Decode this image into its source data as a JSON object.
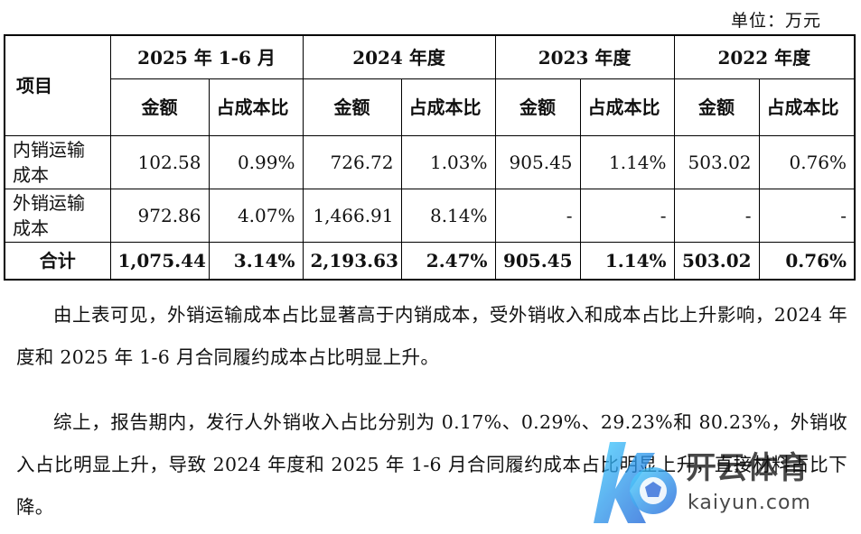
{
  "unit_label": "单位：万元",
  "table": {
    "project_header": "项目",
    "periods": [
      "2025 年 1-6 月",
      "2024 年度",
      "2023 年度",
      "2022 年度"
    ],
    "sub_headers": {
      "amount": "金额",
      "ratio": "占成本比"
    },
    "rows": [
      {
        "name": "内销运输成本",
        "cells": [
          "102.58",
          "0.99%",
          "726.72",
          "1.03%",
          "905.45",
          "1.14%",
          "503.02",
          "0.76%"
        ]
      },
      {
        "name": "外销运输成本",
        "cells": [
          "972.86",
          "4.07%",
          "1,466.91",
          "8.14%",
          "-",
          "-",
          "-",
          "-"
        ]
      }
    ],
    "total": {
      "name": "合计",
      "cells": [
        "1,075.44",
        "3.14%",
        "2,193.63",
        "2.47%",
        "905.45",
        "1.14%",
        "503.02",
        "0.76%"
      ]
    }
  },
  "paragraphs": [
    "由上表可见，外销运输成本占比显著高于内销成本，受外销收入和成本占比上升影响，2024 年度和 2025 年 1-6 月合同履约成本占比明显上升。",
    "综上，报告期内，发行人外销收入占比分别为 0.17%、0.29%、29.23%和 80.23%，外销收入占比明显上升，导致 2024 年度和 2025 年 1-6 月合同履约成本占比明显上升，直接材料占比下降。"
  ],
  "watermark": {
    "brand_cn": "开云体育",
    "brand_url": "kaiyun.com"
  }
}
